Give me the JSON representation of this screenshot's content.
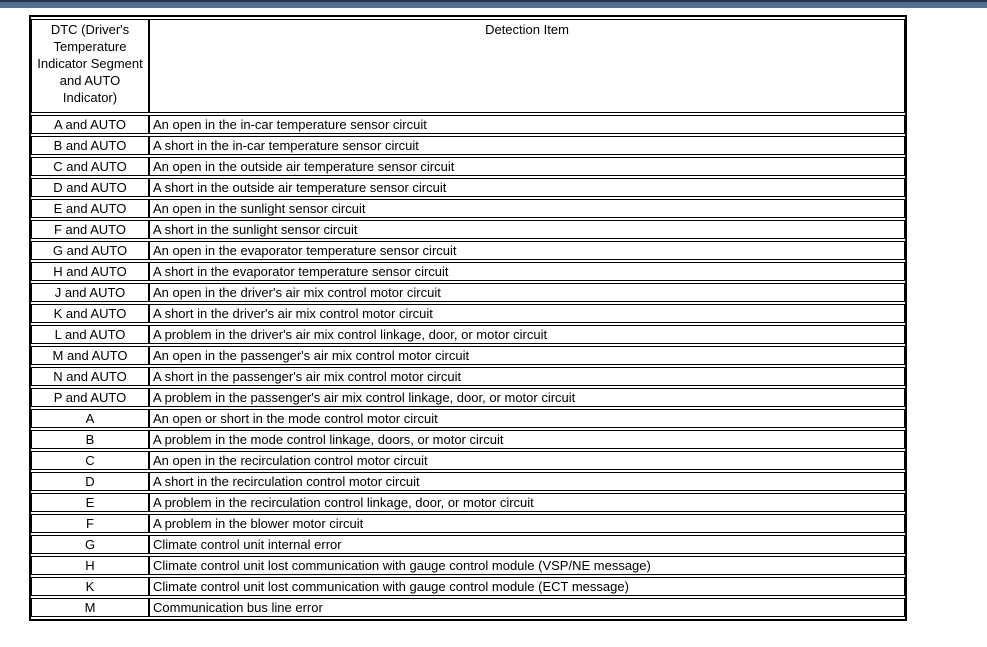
{
  "colors": {
    "top_bar": "#52708e",
    "top_bar_edge": "#24384c",
    "table_border": "#000000"
  },
  "table": {
    "headers": [
      "DTC (Driver's Temperature Indicator Segment and AUTO Indicator)",
      "Detection Item"
    ],
    "rows": [
      {
        "dtc": "A and AUTO",
        "item": "An open in the in-car temperature sensor circuit"
      },
      {
        "dtc": "B and AUTO",
        "item": "A short in the in-car temperature sensor circuit"
      },
      {
        "dtc": "C and AUTO",
        "item": "An open in the outside air temperature sensor circuit"
      },
      {
        "dtc": "D and AUTO",
        "item": "A short in the outside air temperature sensor circuit"
      },
      {
        "dtc": "E and AUTO",
        "item": "An open in the sunlight sensor circuit"
      },
      {
        "dtc": "F and AUTO",
        "item": "A short in the sunlight sensor circuit"
      },
      {
        "dtc": "G and AUTO",
        "item": "An open in the evaporator temperature sensor circuit"
      },
      {
        "dtc": "H and AUTO",
        "item": "A short in the evaporator temperature sensor circuit"
      },
      {
        "dtc": "J and AUTO",
        "item": "An open in the driver's air mix control motor circuit"
      },
      {
        "dtc": "K and AUTO",
        "item": "A short in the driver's air mix control motor circuit"
      },
      {
        "dtc": "L and AUTO",
        "item": "A problem in the driver's air mix control linkage, door, or motor circuit"
      },
      {
        "dtc": "M and AUTO",
        "item": "An open in the passenger's air mix control motor circuit"
      },
      {
        "dtc": "N and AUTO",
        "item": "A short in the passenger's air mix control motor circuit"
      },
      {
        "dtc": "P and AUTO",
        "item": "A problem in the passenger's air mix control linkage, door, or motor circuit"
      },
      {
        "dtc": "A",
        "item": "An open or short in the mode control motor circuit"
      },
      {
        "dtc": "B",
        "item": "A problem in the mode control linkage, doors, or motor circuit"
      },
      {
        "dtc": "C",
        "item": "An open in the recirculation control motor circuit"
      },
      {
        "dtc": "D",
        "item": "A short in the recirculation control motor circuit"
      },
      {
        "dtc": "E",
        "item": "A problem in the recirculation control linkage, door, or motor circuit"
      },
      {
        "dtc": "F",
        "item": "A problem in the blower motor circuit"
      },
      {
        "dtc": "G",
        "item": "Climate control unit internal error"
      },
      {
        "dtc": "H",
        "item": "Climate control unit lost communication with gauge control module (VSP/NE message)"
      },
      {
        "dtc": "K",
        "item": "Climate control unit lost communication with gauge control module (ECT message)"
      },
      {
        "dtc": "M",
        "item": "Communication bus line error"
      }
    ]
  }
}
